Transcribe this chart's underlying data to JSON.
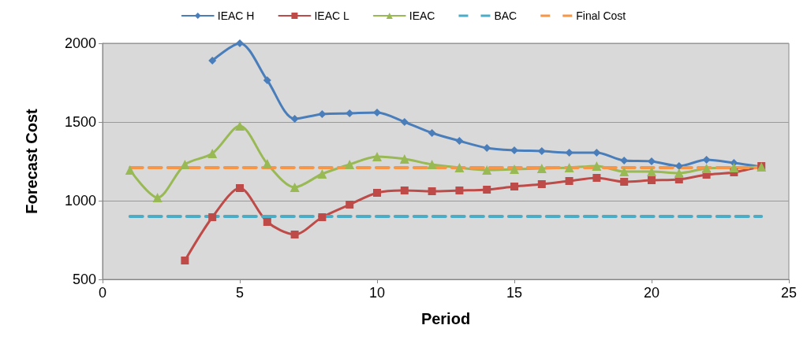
{
  "chart_data": {
    "type": "line",
    "xlabel": "Period",
    "ylabel": "Forecast Cost",
    "x": [
      1,
      2,
      3,
      4,
      5,
      6,
      7,
      8,
      9,
      10,
      11,
      12,
      13,
      14,
      15,
      16,
      17,
      18,
      19,
      20,
      21,
      22,
      23,
      24
    ],
    "series": [
      {
        "name": "IEAC H",
        "color": "#4a7ebb",
        "marker": "diamond",
        "values": [
          null,
          null,
          null,
          1890,
          2000,
          1765,
          1520,
          1550,
          1555,
          1560,
          1500,
          1430,
          1380,
          1335,
          1320,
          1315,
          1305,
          1305,
          1255,
          1250,
          1220,
          1260,
          1240,
          1215
        ]
      },
      {
        "name": "IEAC L",
        "color": "#be4b48",
        "marker": "square",
        "values": [
          null,
          null,
          620,
          895,
          1080,
          865,
          785,
          895,
          975,
          1050,
          1065,
          1060,
          1065,
          1070,
          1090,
          1105,
          1125,
          1145,
          1120,
          1130,
          1135,
          1165,
          1180,
          1220
        ]
      },
      {
        "name": "IEAC",
        "color": "#98b954",
        "marker": "triangle",
        "values": [
          1195,
          1020,
          1230,
          1300,
          1475,
          1235,
          1085,
          1170,
          1230,
          1280,
          1265,
          1230,
          1210,
          1195,
          1200,
          1205,
          1210,
          1220,
          1185,
          1185,
          1175,
          1205,
          1210,
          1215
        ]
      },
      {
        "name": "BAC",
        "color": "#4bacc6",
        "marker": "none",
        "line_style": "dashed",
        "values": [
          900,
          900,
          900,
          900,
          900,
          900,
          900,
          900,
          900,
          900,
          900,
          900,
          900,
          900,
          900,
          900,
          900,
          900,
          900,
          900,
          900,
          900,
          900,
          900
        ]
      },
      {
        "name": "Final Cost",
        "color": "#f79646",
        "marker": "none",
        "line_style": "dashed",
        "values": [
          1210,
          1210,
          1210,
          1210,
          1210,
          1210,
          1210,
          1210,
          1210,
          1210,
          1210,
          1210,
          1210,
          1210,
          1210,
          1210,
          1210,
          1210,
          1210,
          1210,
          1210,
          1210,
          1210,
          1210
        ]
      }
    ],
    "xlim": [
      0,
      25
    ],
    "xticks": [
      0,
      5,
      10,
      15,
      20,
      25
    ],
    "ylim": [
      500,
      2000
    ],
    "yticks": [
      500,
      1000,
      1500,
      2000
    ],
    "grid": "y",
    "legend": "top",
    "line_style": "solid"
  }
}
